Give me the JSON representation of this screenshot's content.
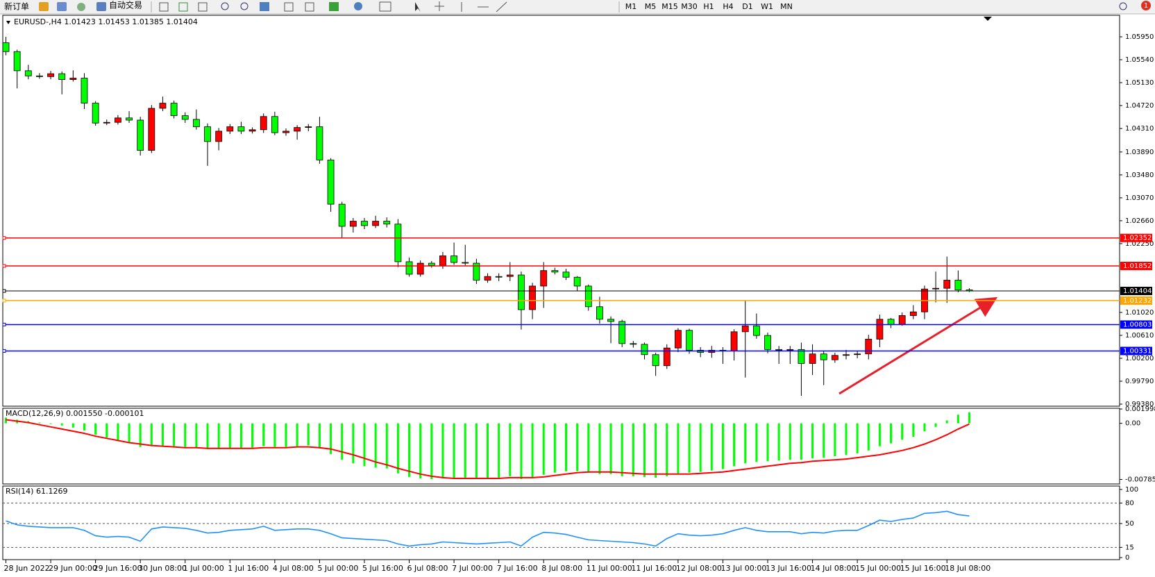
{
  "toolbar": {
    "buttons": [
      "新订单",
      "自动交易"
    ],
    "timeframes": [
      "M1",
      "M5",
      "M15",
      "M30",
      "H1",
      "H4",
      "D1",
      "W1",
      "MN"
    ],
    "notification_count": "1"
  },
  "chart_data": [
    {
      "type": "candlestick",
      "symbol": "EURUSD-,H4",
      "categories": [
        "28 Jun 2022",
        null,
        null,
        null,
        "29 Jun 00:00",
        null,
        null,
        null,
        "29 Jun 16:00",
        null,
        null,
        null,
        "30 Jun 08:00",
        null,
        null,
        null,
        "1 Jul 00:00",
        null,
        null,
        null,
        "1 Jul 16:00",
        null,
        null,
        null,
        "4 Jul 08:00",
        null,
        null,
        null,
        "5 Jul 00:00",
        null,
        null,
        null,
        "5 Jul 16:00",
        null,
        null,
        null,
        "6 Jul 08:00",
        null,
        null,
        null,
        "7 Jul 00:00",
        null,
        null,
        null,
        "7 Jul 16:00",
        null,
        null,
        null,
        "8 Jul 08:00",
        null,
        null,
        null,
        "11 Jul 00:00",
        null,
        null,
        null,
        "11 Jul 16:00",
        null,
        null,
        null,
        "12 Jul 08:00",
        null,
        null,
        null,
        "13 Jul 00:00",
        null,
        null,
        null,
        "13 Jul 16:00",
        null,
        null,
        null,
        "14 Jul 08:00",
        null,
        null,
        null,
        "15 Jul 00:00",
        null,
        null,
        null,
        "15 Jul 16:00",
        null,
        null,
        null,
        "18 Jul 08:00",
        null,
        null
      ],
      "open": [
        1.05844,
        1.05686,
        1.05343,
        1.05251,
        1.05238,
        1.0529,
        1.05185,
        1.05211,
        1.04763,
        1.04407,
        1.0442,
        1.04499,
        1.0446,
        1.03919,
        1.04671,
        1.04763,
        1.04539,
        1.04473,
        1.04341,
        1.04077,
        1.04262,
        1.04341,
        1.04262,
        1.04288,
        1.04525,
        1.04235,
        1.04262,
        1.04328,
        1.04341,
        1.03747,
        1.02956,
        1.0256,
        1.02652,
        1.02573,
        1.02652,
        1.026,
        1.01927,
        1.01703,
        1.01901,
        1.01861,
        1.02033,
        1.01914,
        1.01901,
        1.01597,
        1.01663,
        1.01663,
        1.0169,
        1.0107,
        1.01492,
        1.01769,
        1.01742,
        1.0165,
        1.01492,
        1.01122,
        1.00898,
        1.00859,
        1.00463,
        1.0045,
        1.00265,
        1.00067,
        1.00384,
        1.007,
        1.00344,
        1.00305,
        1.00344,
        1.00331,
        1.00674,
        1.0078,
        1.00608,
        1.00357,
        1.00344,
        1.00357,
        1.00107,
        1.00278,
        1.00173,
        1.00252,
        1.00265,
        1.00278,
        1.00542,
        1.00898,
        1.00806,
        1.00964,
        1.0103,
        1.01439,
        1.01452,
        1.01597,
        1.01423
      ],
      "high": [
        1.0595,
        1.0572,
        1.0545,
        1.053,
        1.0534,
        1.0533,
        1.0535,
        1.053,
        1.048,
        1.0447,
        1.0455,
        1.0462,
        1.0452,
        1.0473,
        1.0488,
        1.0481,
        1.046,
        1.0465,
        1.044,
        1.0432,
        1.0439,
        1.0443,
        1.0433,
        1.0458,
        1.0461,
        1.0431,
        1.0437,
        1.0439,
        1.0452,
        1.0378,
        1.03,
        1.0271,
        1.0271,
        1.0275,
        1.0272,
        1.0269,
        1.02,
        1.0195,
        1.0194,
        1.021,
        1.0227,
        1.0223,
        1.0198,
        1.0172,
        1.0172,
        1.0192,
        1.0175,
        1.0155,
        1.0192,
        1.0182,
        1.018,
        1.0167,
        1.0152,
        1.013,
        1.0095,
        1.0089,
        1.0051,
        1.0048,
        1.003,
        1.0045,
        1.0074,
        1.0073,
        1.004,
        1.0042,
        1.004,
        1.0072,
        1.01228,
        1.01,
        1.0066,
        1.0042,
        1.0042,
        1.0048,
        1.0045,
        1.0033,
        1.003,
        1.0035,
        1.0033,
        1.0062,
        1.0098,
        1.0092,
        1.0102,
        1.0115,
        1.015,
        1.0175,
        1.02019,
        1.0177,
        1.01453
      ],
      "low": [
        1.0562,
        1.05027,
        1.0519,
        1.052,
        1.0519,
        1.0492,
        1.0515,
        1.04657,
        1.0436,
        1.0437,
        1.0438,
        1.0441,
        1.03826,
        1.0387,
        1.0462,
        1.0449,
        1.0441,
        1.0429,
        1.03642,
        1.0392,
        1.0421,
        1.0421,
        1.0422,
        1.0423,
        1.0419,
        1.0418,
        1.0411,
        1.0426,
        1.0368,
        1.0282,
        1.02362,
        1.0245,
        1.0251,
        1.0253,
        1.0254,
        1.0183,
        1.0166,
        1.0166,
        1.0182,
        1.018,
        1.0187,
        1.0186,
        1.0153,
        1.0155,
        1.0158,
        1.0158,
        1.00713,
        1.009,
        1.011,
        1.017,
        1.016,
        1.014,
        1.0105,
        1.0082,
        1.0047,
        1.004,
        1.0039,
        1.0018,
        0.99885,
        1.0001,
        1.0031,
        1.0028,
        1.0022,
        1.0021,
        1.001,
        1.0016,
        0.99855,
        1.0055,
        1.0029,
        1.001,
        1.001,
        0.99527,
        0.999,
        0.9972,
        1.0012,
        1.0018,
        1.002,
        1.0018,
        1.004,
        1.0074,
        1.0078,
        1.009,
        1.009,
        1.012,
        1.0119,
        1.0138,
        1.01385
      ],
      "close": [
        1.05686,
        1.05343,
        1.05251,
        1.05238,
        1.0529,
        1.05185,
        1.05211,
        1.04763,
        1.04407,
        1.0442,
        1.04499,
        1.0446,
        1.03919,
        1.04671,
        1.04763,
        1.04539,
        1.04473,
        1.04341,
        1.04077,
        1.04262,
        1.04341,
        1.04262,
        1.04288,
        1.04525,
        1.04235,
        1.04262,
        1.04328,
        1.04341,
        1.03747,
        1.02956,
        1.0256,
        1.02652,
        1.02573,
        1.02652,
        1.026,
        1.01927,
        1.01703,
        1.01901,
        1.01861,
        1.02033,
        1.01914,
        1.01901,
        1.01597,
        1.01663,
        1.01663,
        1.0169,
        1.0107,
        1.01492,
        1.01769,
        1.01742,
        1.0165,
        1.01492,
        1.01122,
        1.00898,
        1.00859,
        1.00463,
        1.0045,
        1.00265,
        1.00067,
        1.00384,
        1.007,
        1.00344,
        1.00305,
        1.00344,
        1.00331,
        1.00674,
        1.0078,
        1.00608,
        1.00357,
        1.00344,
        1.00357,
        1.00107,
        1.00278,
        1.00173,
        1.00252,
        1.00265,
        1.00278,
        1.00542,
        1.00898,
        1.00806,
        1.00964,
        1.0103,
        1.01439,
        1.01452,
        1.01597,
        1.01423,
        1.01404
      ],
      "up_color": "#ff0000",
      "down_color": "#00ff00",
      "ylim": [
        0.99343,
        1.06335
      ],
      "yticks": [
        {
          "value": 1.0595,
          "label": "1.05950"
        },
        {
          "value": 1.0554,
          "label": "1.05540"
        },
        {
          "value": 1.0513,
          "label": "1.05130"
        },
        {
          "value": 1.0472,
          "label": "1.04720"
        },
        {
          "value": 1.0431,
          "label": "1.04310"
        },
        {
          "value": 1.0389,
          "label": "1.03890"
        },
        {
          "value": 1.0348,
          "label": "1.03480"
        },
        {
          "value": 1.0307,
          "label": "1.03070"
        },
        {
          "value": 1.0266,
          "label": "1.02660"
        },
        {
          "value": 1.0225,
          "label": "1.02250"
        },
        {
          "value": 1.0102,
          "label": "1.01020"
        },
        {
          "value": 1.0061,
          "label": "1.00610"
        },
        {
          "value": 1.002,
          "label": "1.00200"
        },
        {
          "value": 0.9979,
          "label": "0.99790"
        },
        {
          "value": 0.9938,
          "label": "0.99380"
        }
      ],
      "hlines": [
        {
          "value": 1.02352,
          "color": "#ff0000"
        },
        {
          "value": 1.01852,
          "color": "#ff0000"
        },
        {
          "value": 1.01404,
          "color": "#000000"
        },
        {
          "value": 1.01232,
          "color": "#ffa500"
        },
        {
          "value": 1.00803,
          "color": "#0000ff"
        },
        {
          "value": 1.00331,
          "color": "#0000ff"
        }
      ]
    },
    {
      "type": "macd",
      "title": "MACD(12,26,9)",
      "series": [
        {
          "style": "bar",
          "color": "#00ff00",
          "values": [
            0.0008,
            0.0005,
            0.0003,
            0.0001,
            -0.0001,
            -0.0003,
            -0.0006,
            -0.001,
            -0.0016,
            -0.002,
            -0.0024,
            -0.0027,
            -0.0033,
            -0.0032,
            -0.0031,
            -0.0032,
            -0.0033,
            -0.0034,
            -0.0036,
            -0.0036,
            -0.0035,
            -0.0035,
            -0.0034,
            -0.0032,
            -0.0033,
            -0.0033,
            -0.0032,
            -0.0031,
            -0.0035,
            -0.0043,
            -0.0051,
            -0.0056,
            -0.006,
            -0.0062,
            -0.0063,
            -0.007,
            -0.0075,
            -0.0077,
            -0.0078,
            -0.0077,
            -0.0077,
            -0.0076,
            -0.0078,
            -0.0077,
            -0.0076,
            -0.0074,
            -0.0078,
            -0.0076,
            -0.0072,
            -0.0069,
            -0.0067,
            -0.0067,
            -0.0069,
            -0.0071,
            -0.0071,
            -0.0074,
            -0.0074,
            -0.0075,
            -0.0076,
            -0.0074,
            -0.007,
            -0.0069,
            -0.0068,
            -0.0066,
            -0.0064,
            -0.006,
            -0.0056,
            -0.0054,
            -0.0053,
            -0.0052,
            -0.0051,
            -0.0051,
            -0.0049,
            -0.0048,
            -0.0046,
            -0.0044,
            -0.0042,
            -0.0038,
            -0.0032,
            -0.0028,
            -0.0023,
            -0.0019,
            -0.0011,
            -0.0005,
            0.0004,
            0.0012,
            0.00155
          ],
          "value_labels": [
            null,
            null,
            null,
            null,
            null,
            null,
            null,
            null,
            null,
            null,
            null,
            null,
            null,
            null,
            null,
            null,
            null,
            null,
            null,
            null,
            null,
            null,
            null,
            null,
            null,
            null,
            null,
            null,
            null,
            null,
            null,
            null,
            null,
            null,
            null,
            null,
            null,
            null,
            null,
            null,
            null,
            null,
            null,
            null,
            null,
            null,
            null,
            null,
            null,
            null,
            null,
            null,
            null,
            null,
            null,
            null,
            null,
            null,
            null,
            null,
            null,
            null,
            null,
            null,
            null,
            null,
            null,
            null,
            null,
            null,
            null,
            null,
            null,
            null,
            null,
            null,
            null,
            null,
            null,
            null,
            null,
            null,
            null,
            null,
            null,
            null,
            "0.001550"
          ]
        },
        {
          "style": "line",
          "color": "#ff0000",
          "values": [
            0.0005,
            0.0003,
            0.0001,
            -0.0002,
            -0.0005,
            -0.0008,
            -0.0011,
            -0.0014,
            -0.0018,
            -0.0021,
            -0.0024,
            -0.0027,
            -0.0029,
            -0.0031,
            -0.0032,
            -0.0033,
            -0.0034,
            -0.0034,
            -0.0035,
            -0.0035,
            -0.0035,
            -0.0035,
            -0.0035,
            -0.0034,
            -0.0034,
            -0.0034,
            -0.0033,
            -0.0033,
            -0.0034,
            -0.0036,
            -0.004,
            -0.0044,
            -0.0049,
            -0.0054,
            -0.0058,
            -0.0063,
            -0.0067,
            -0.0071,
            -0.0074,
            -0.0076,
            -0.0077,
            -0.0077,
            -0.0077,
            -0.0077,
            -0.0077,
            -0.0076,
            -0.0076,
            -0.0076,
            -0.0075,
            -0.0073,
            -0.0071,
            -0.0069,
            -0.0068,
            -0.0068,
            -0.0068,
            -0.0069,
            -0.007,
            -0.0071,
            -0.0071,
            -0.0071,
            -0.0071,
            -0.0071,
            -0.007,
            -0.0069,
            -0.0068,
            -0.0066,
            -0.0064,
            -0.0062,
            -0.006,
            -0.0058,
            -0.0056,
            -0.0055,
            -0.0053,
            -0.0052,
            -0.0051,
            -0.005,
            -0.0048,
            -0.0046,
            -0.0044,
            -0.0041,
            -0.0038,
            -0.0034,
            -0.0029,
            -0.0023,
            -0.0016,
            -0.0008,
            -0.000101
          ]
        }
      ],
      "ylim": [
        -0.00848,
        0.0021
      ],
      "yticks": [
        0.001998,
        {
          "value": 0,
          "label": "0.00"
        },
        -0.00785
      ]
    },
    {
      "type": "line",
      "title": "RSI(14)",
      "color": "#1e90ff",
      "values": [
        54,
        48,
        46,
        45,
        44,
        44,
        44,
        40,
        32,
        30,
        31,
        30,
        24,
        42,
        45,
        44,
        43,
        40,
        36,
        37,
        40,
        41,
        42,
        46,
        40,
        41,
        42,
        42,
        40,
        35,
        29,
        28,
        27,
        26,
        25,
        20,
        17,
        19,
        20,
        23,
        22,
        21,
        20,
        21,
        22,
        23,
        17,
        30,
        37,
        36,
        34,
        30,
        26,
        25,
        24,
        23,
        22,
        20,
        17,
        28,
        35,
        33,
        32,
        33,
        35,
        40,
        44,
        40,
        38,
        38,
        38,
        35,
        37,
        36,
        39,
        40,
        40,
        47,
        55,
        53,
        56,
        58,
        65,
        66,
        68,
        63,
        61.1269
      ],
      "ylim": [
        -3,
        105
      ],
      "yticks": [
        100,
        80,
        50,
        15,
        0
      ],
      "levels": [
        80,
        50,
        15
      ]
    }
  ]
}
